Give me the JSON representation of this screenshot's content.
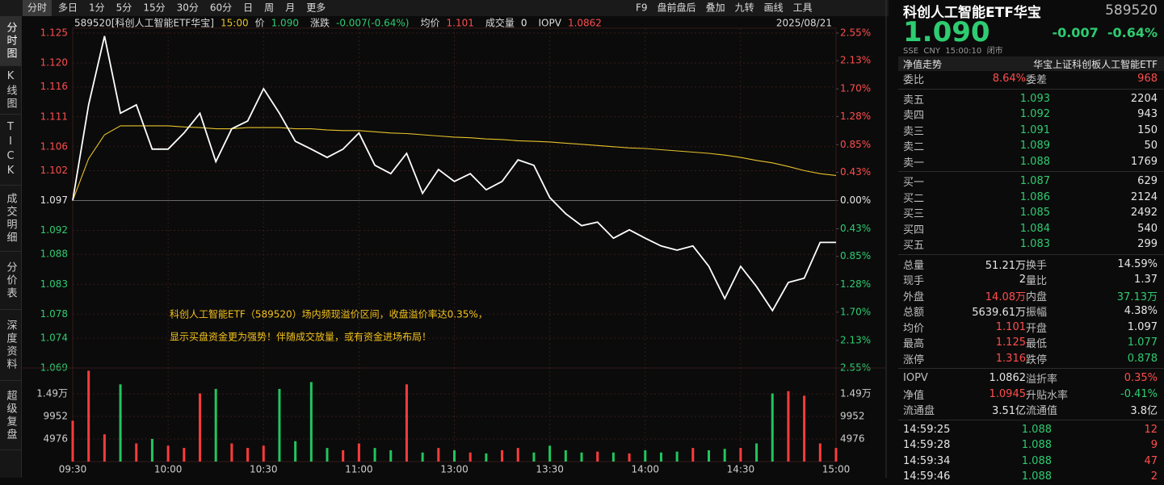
{
  "toolbar": {
    "periods": [
      "分时",
      "多日",
      "1分",
      "5分",
      "15分",
      "30分",
      "60分",
      "日",
      "周",
      "月",
      "更多"
    ],
    "tools": [
      "F9",
      "盘前盘后",
      "叠加",
      "九转",
      "画线",
      "工具"
    ]
  },
  "side_tabs": [
    "分时图",
    "K线图",
    "TICK",
    "成交明细",
    "分价表",
    "深度资料",
    "超级复盘"
  ],
  "chart_data": [
    {
      "type": "line",
      "header": {
        "symbol": "589520[科创人工智能ETF华宝]",
        "time": "15:00",
        "fields": [
          {
            "label": "价",
            "value": "1.090",
            "color": "#2ecc71"
          },
          {
            "label": "涨跌",
            "value": "-0.007(-0.64%)",
            "color": "#2ecc71"
          },
          {
            "label": "均价",
            "value": "1.101",
            "color": "#ff4d4d"
          },
          {
            "label": "成交量",
            "value": "0",
            "color": "#e6e6e6"
          },
          {
            "label": "IOPV",
            "value": "1.0862",
            "color": "#ff4d4d"
          }
        ],
        "date": "2025/08/21"
      },
      "annotation": [
        "科创人工智能ETF（589520）场内频现溢价区间，收盘溢价率达0.35%，",
        "显示买盘资金更为强势！伴随成交放量，或有资金进场布局！"
      ],
      "xlim": [
        0,
        48
      ],
      "ylim": [
        1.069,
        1.125
      ],
      "yticks": [
        1.125,
        {
          "value": 1.12,
          "label": "1.120"
        },
        1.116,
        1.111,
        1.106,
        1.102,
        1.097,
        1.092,
        1.088,
        1.083,
        1.078,
        1.074,
        1.069
      ],
      "y2lim": [
        -2.55,
        2.55
      ],
      "y2ticks": [
        {
          "value": 2.55,
          "label": "2.55%"
        },
        {
          "value": 2.13,
          "label": "2.13%"
        },
        {
          "value": 1.7,
          "label": "1.70%"
        },
        {
          "value": 1.28,
          "label": "1.28%"
        },
        {
          "value": 0.85,
          "label": "0.85%"
        },
        {
          "value": 0.43,
          "label": "0.43%"
        },
        {
          "value": 0,
          "label": "0.00%"
        },
        {
          "value": -0.43,
          "label": "0.43%"
        },
        {
          "value": -0.85,
          "label": "0.85%"
        },
        {
          "value": -1.28,
          "label": "1.28%"
        },
        {
          "value": -1.7,
          "label": "1.70%"
        },
        {
          "value": -2.13,
          "label": "2.13%"
        },
        {
          "value": -2.55,
          "label": "2.55%"
        }
      ],
      "grid": true,
      "series": [
        {
          "color": "#ffffff",
          "values": [
            1.097,
            1.113,
            1.1245,
            1.1116,
            1.113,
            1.1056,
            1.1056,
            1.1083,
            1.1116,
            1.1035,
            1.109,
            1.1103,
            1.1157,
            1.1116,
            1.1069,
            1.1056,
            1.1042,
            1.1056,
            1.1083,
            1.1029,
            1.1015,
            1.1049,
            1.0982,
            1.1022,
            1.1002,
            1.1015,
            1.0988,
            1.1002,
            1.1038,
            1.1029,
            1.0975,
            1.0948,
            1.0928,
            1.0934,
            1.0907,
            1.0921,
            1.0907,
            1.0894,
            1.0887,
            1.0894,
            1.086,
            1.0806,
            1.086,
            1.0826,
            1.0786,
            1.0833,
            1.084,
            1.09,
            1.09
          ]
        },
        {
          "color": "#e6c229",
          "values": [
            1.097,
            1.104,
            1.108,
            1.1095,
            1.1095,
            1.1095,
            1.1095,
            1.1093,
            1.1092,
            1.109,
            1.109,
            1.1092,
            1.1092,
            1.1092,
            1.109,
            1.109,
            1.1088,
            1.1087,
            1.1087,
            1.1085,
            1.1083,
            1.1082,
            1.108,
            1.1078,
            1.1076,
            1.1075,
            1.1073,
            1.1072,
            1.107,
            1.1069,
            1.1068,
            1.1066,
            1.1064,
            1.1062,
            1.106,
            1.1058,
            1.1057,
            1.1055,
            1.1053,
            1.1051,
            1.1049,
            1.1046,
            1.1042,
            1.1037,
            1.1033,
            1.1027,
            1.102,
            1.1015,
            1.1012
          ]
        }
      ]
    },
    {
      "type": "bar",
      "xlim": [
        0,
        48
      ],
      "xticks": [
        {
          "value": 0,
          "label": "09:30"
        },
        {
          "value": 6,
          "label": "10:00"
        },
        {
          "value": 12,
          "label": "10:30"
        },
        {
          "value": 18,
          "label": "11:00"
        },
        {
          "value": 24,
          "label": "13:00"
        },
        {
          "value": 30,
          "label": "13:30"
        },
        {
          "value": 36,
          "label": "14:00"
        },
        {
          "value": 42,
          "label": "14:30"
        },
        {
          "value": 48,
          "label": "15:00"
        }
      ],
      "ylim": [
        0,
        20600
      ],
      "yticks": [
        {
          "value": 14900,
          "label": "1.49万"
        },
        9952,
        4976
      ],
      "up_color": "#ff3b3b",
      "down_color": "#22c55e",
      "values": [
        9000,
        20000,
        6000,
        17000,
        4000,
        5000,
        3500,
        3000,
        15000,
        16000,
        4000,
        3000,
        3500,
        16000,
        4500,
        17500,
        3000,
        2500,
        4000,
        3000,
        2500,
        17000,
        2000,
        3000,
        2500,
        2000,
        1800,
        2500,
        3000,
        2000,
        3500,
        2500,
        2000,
        2200,
        2000,
        1800,
        2500,
        2000,
        2200,
        3000,
        2500,
        2800,
        3000,
        4000,
        15000,
        15500,
        14500,
        4000,
        3000
      ]
    }
  ],
  "quote": {
    "name": "科创人工智能ETF华宝",
    "code": "589520",
    "price": "1.090",
    "change": "-0.007",
    "change_pct": "-0.64%",
    "meta": "SSE  CNY  15:00:10  闭市",
    "nav_tab": "净值走势",
    "fund_name": "华宝上证科创板人工智能ETF",
    "ratio": [
      {
        "label": "委比",
        "value": "8.64%",
        "color": "#ff4d4d"
      },
      {
        "label": "委差",
        "value": "968",
        "color": "#ff4d4d"
      }
    ],
    "asks": [
      {
        "label": "卖五",
        "price": "1.093",
        "volume": "2204"
      },
      {
        "label": "卖四",
        "price": "1.092",
        "volume": "943"
      },
      {
        "label": "卖三",
        "price": "1.091",
        "volume": "150"
      },
      {
        "label": "卖二",
        "price": "1.089",
        "volume": "50"
      },
      {
        "label": "卖一",
        "price": "1.088",
        "volume": "1769"
      }
    ],
    "bids": [
      {
        "label": "买一",
        "price": "1.087",
        "volume": "629"
      },
      {
        "label": "买二",
        "price": "1.086",
        "volume": "2124"
      },
      {
        "label": "买三",
        "price": "1.085",
        "volume": "2492"
      },
      {
        "label": "买四",
        "price": "1.084",
        "volume": "540"
      },
      {
        "label": "买五",
        "price": "1.083",
        "volume": "299"
      }
    ],
    "stats": [
      [
        {
          "label": "总量",
          "value": "51.21万"
        },
        {
          "label": "换手",
          "value": "14.59%"
        }
      ],
      [
        {
          "label": "现手",
          "value": "2"
        },
        {
          "label": "量比",
          "value": "1.37"
        }
      ],
      [
        {
          "label": "外盘",
          "value": "14.08万",
          "color": "#ff4d4d"
        },
        {
          "label": "内盘",
          "value": "37.13万",
          "color": "#2ecc71"
        }
      ],
      [
        {
          "label": "总额",
          "value": "5639.61万"
        },
        {
          "label": "振幅",
          "value": "4.38%"
        }
      ],
      [
        {
          "label": "均价",
          "value": "1.101",
          "color": "#ff4d4d"
        },
        {
          "label": "开盘",
          "value": "1.097"
        }
      ],
      [
        {
          "label": "最高",
          "value": "1.125",
          "color": "#ff4d4d"
        },
        {
          "label": "最低",
          "value": "1.077",
          "color": "#2ecc71"
        }
      ],
      [
        {
          "label": "涨停",
          "value": "1.316",
          "color": "#ff4d4d"
        },
        {
          "label": "跌停",
          "value": "0.878",
          "color": "#2ecc71"
        }
      ]
    ],
    "nav_stats": [
      [
        {
          "label": "IOPV",
          "value": "1.0862"
        },
        {
          "label": "溢折率",
          "value": "0.35%",
          "color": "#ff4d4d"
        }
      ],
      [
        {
          "label": "净值",
          "value": "1.0945",
          "color": "#ff4d4d"
        },
        {
          "label": "升贴水率",
          "value": "-0.41%",
          "color": "#2ecc71"
        }
      ],
      [
        {
          "label": "流通盘",
          "value": "3.51亿"
        },
        {
          "label": "流通值",
          "value": "3.8亿"
        }
      ]
    ],
    "trades": [
      {
        "time": "14:59:25",
        "price": "1.088",
        "volume": "12"
      },
      {
        "time": "14:59:28",
        "price": "1.088",
        "volume": "9"
      },
      {
        "time": "14:59:34",
        "price": "1.088",
        "volume": "47"
      },
      {
        "time": "14:59:46",
        "price": "1.088",
        "volume": "2"
      }
    ]
  }
}
